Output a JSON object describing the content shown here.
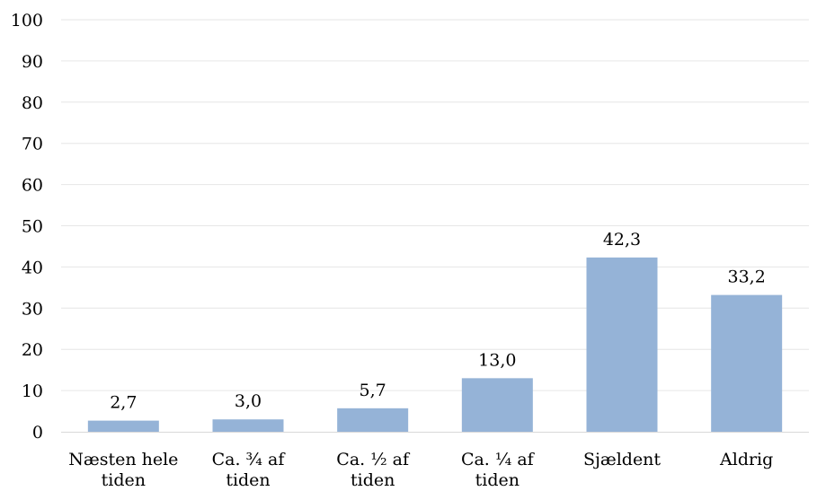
{
  "chart_data": {
    "type": "bar",
    "title": "",
    "xlabel": "",
    "ylabel": "",
    "categories": [
      [
        "Næsten hele",
        "tiden"
      ],
      [
        "Ca. ¾ af",
        "tiden"
      ],
      [
        "Ca. ½ af",
        "tiden"
      ],
      [
        "Ca. ¼ af",
        "tiden"
      ],
      [
        "Sjældent"
      ],
      [
        "Aldrig"
      ]
    ],
    "values": [
      2.7,
      3.0,
      5.7,
      13.0,
      42.3,
      33.2
    ],
    "value_labels": [
      "2,7",
      "3,0",
      "5,7",
      "13,0",
      "42,3",
      "33,2"
    ],
    "ylim": [
      0,
      100
    ],
    "yticks": [
      0,
      10,
      20,
      30,
      40,
      50,
      60,
      70,
      80,
      90,
      100
    ],
    "grid": true,
    "colors": {
      "bar": "#95b3d7",
      "grid": "#e6e6e6",
      "axis": "#d9d9d9"
    }
  }
}
